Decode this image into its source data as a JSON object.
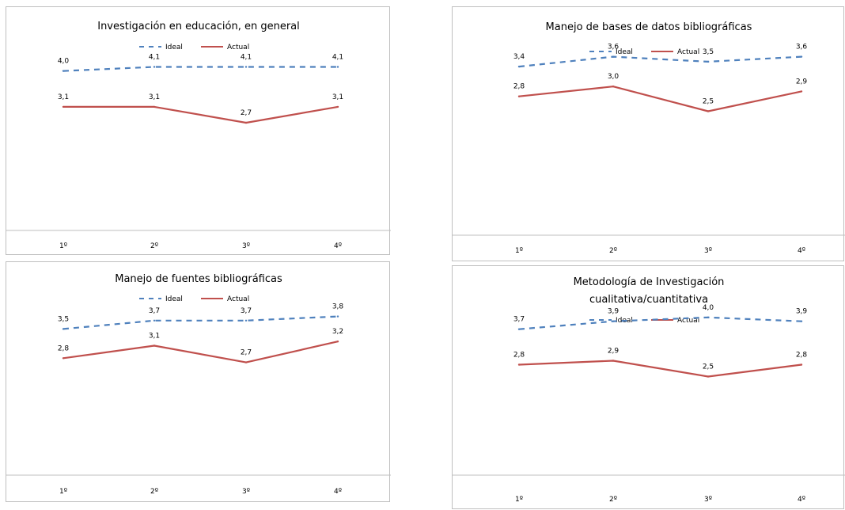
{
  "chart_data": [
    {
      "type": "line",
      "title": [
        "Investigación en educación, en general"
      ],
      "categories": [
        "1º",
        "2º",
        "3º",
        "4º"
      ],
      "series": [
        {
          "name": "Ideal",
          "values": [
            4.0,
            4.1,
            4.1,
            4.1
          ],
          "labels": [
            "4,0",
            "4,1",
            "4,1",
            "4,1"
          ],
          "color": "#4f81bd",
          "dash": true
        },
        {
          "name": "Actual",
          "values": [
            3.1,
            3.1,
            2.7,
            3.1
          ],
          "labels": [
            "3,1",
            "3,1",
            "2,7",
            "3,1"
          ],
          "color": "#c0504d",
          "dash": false
        }
      ],
      "ylim": [
        0,
        5.6
      ],
      "grid": false,
      "legend": "top"
    },
    {
      "type": "line",
      "title": [
        "Manejo de bases de datos bibliográficas"
      ],
      "categories": [
        "1º",
        "2º",
        "3º",
        "4º"
      ],
      "series": [
        {
          "name": "Ideal",
          "values": [
            3.4,
            3.6,
            3.5,
            3.6
          ],
          "labels": [
            "3,4",
            "3,6",
            "3,5",
            "3,6"
          ],
          "color": "#4f81bd",
          "dash": true
        },
        {
          "name": "Actual",
          "values": [
            2.8,
            3.0,
            2.5,
            2.9
          ],
          "labels": [
            "2,8",
            "3,0",
            "2,5",
            "2,9"
          ],
          "color": "#c0504d",
          "dash": false
        }
      ],
      "ylim": [
        0,
        4.6
      ],
      "grid": false,
      "legend": "top"
    },
    {
      "type": "line",
      "title": [
        "Manejo de fuentes bibliográficas"
      ],
      "categories": [
        "1º",
        "2º",
        "3º",
        "4º"
      ],
      "series": [
        {
          "name": "Ideal",
          "values": [
            3.5,
            3.7,
            3.7,
            3.8
          ],
          "labels": [
            "3,5",
            "3,7",
            "3,7",
            "3,8"
          ],
          "color": "#4f81bd",
          "dash": true
        },
        {
          "name": "Actual",
          "values": [
            2.8,
            3.1,
            2.7,
            3.2
          ],
          "labels": [
            "2,8",
            "3,1",
            "2,7",
            "3,2"
          ],
          "color": "#c0504d",
          "dash": false
        }
      ],
      "ylim": [
        0,
        5.1
      ],
      "grid": false,
      "legend": "top"
    },
    {
      "type": "line",
      "title": [
        "Metodología de Investigación",
        "cualitativa/cuantitativa"
      ],
      "categories": [
        "1º",
        "2º",
        "3º",
        "4º"
      ],
      "series": [
        {
          "name": "Ideal",
          "values": [
            3.7,
            3.9,
            4.0,
            3.9
          ],
          "labels": [
            "3,7",
            "3,9",
            "4,0",
            "3,9"
          ],
          "color": "#4f81bd",
          "dash": true
        },
        {
          "name": "Actual",
          "values": [
            2.8,
            2.9,
            2.5,
            2.8
          ],
          "labels": [
            "2,8",
            "2,9",
            "2,5",
            "2,8"
          ],
          "color": "#c0504d",
          "dash": false
        }
      ],
      "ylim": [
        0,
        5.3
      ],
      "grid": false,
      "legend": "top"
    }
  ]
}
